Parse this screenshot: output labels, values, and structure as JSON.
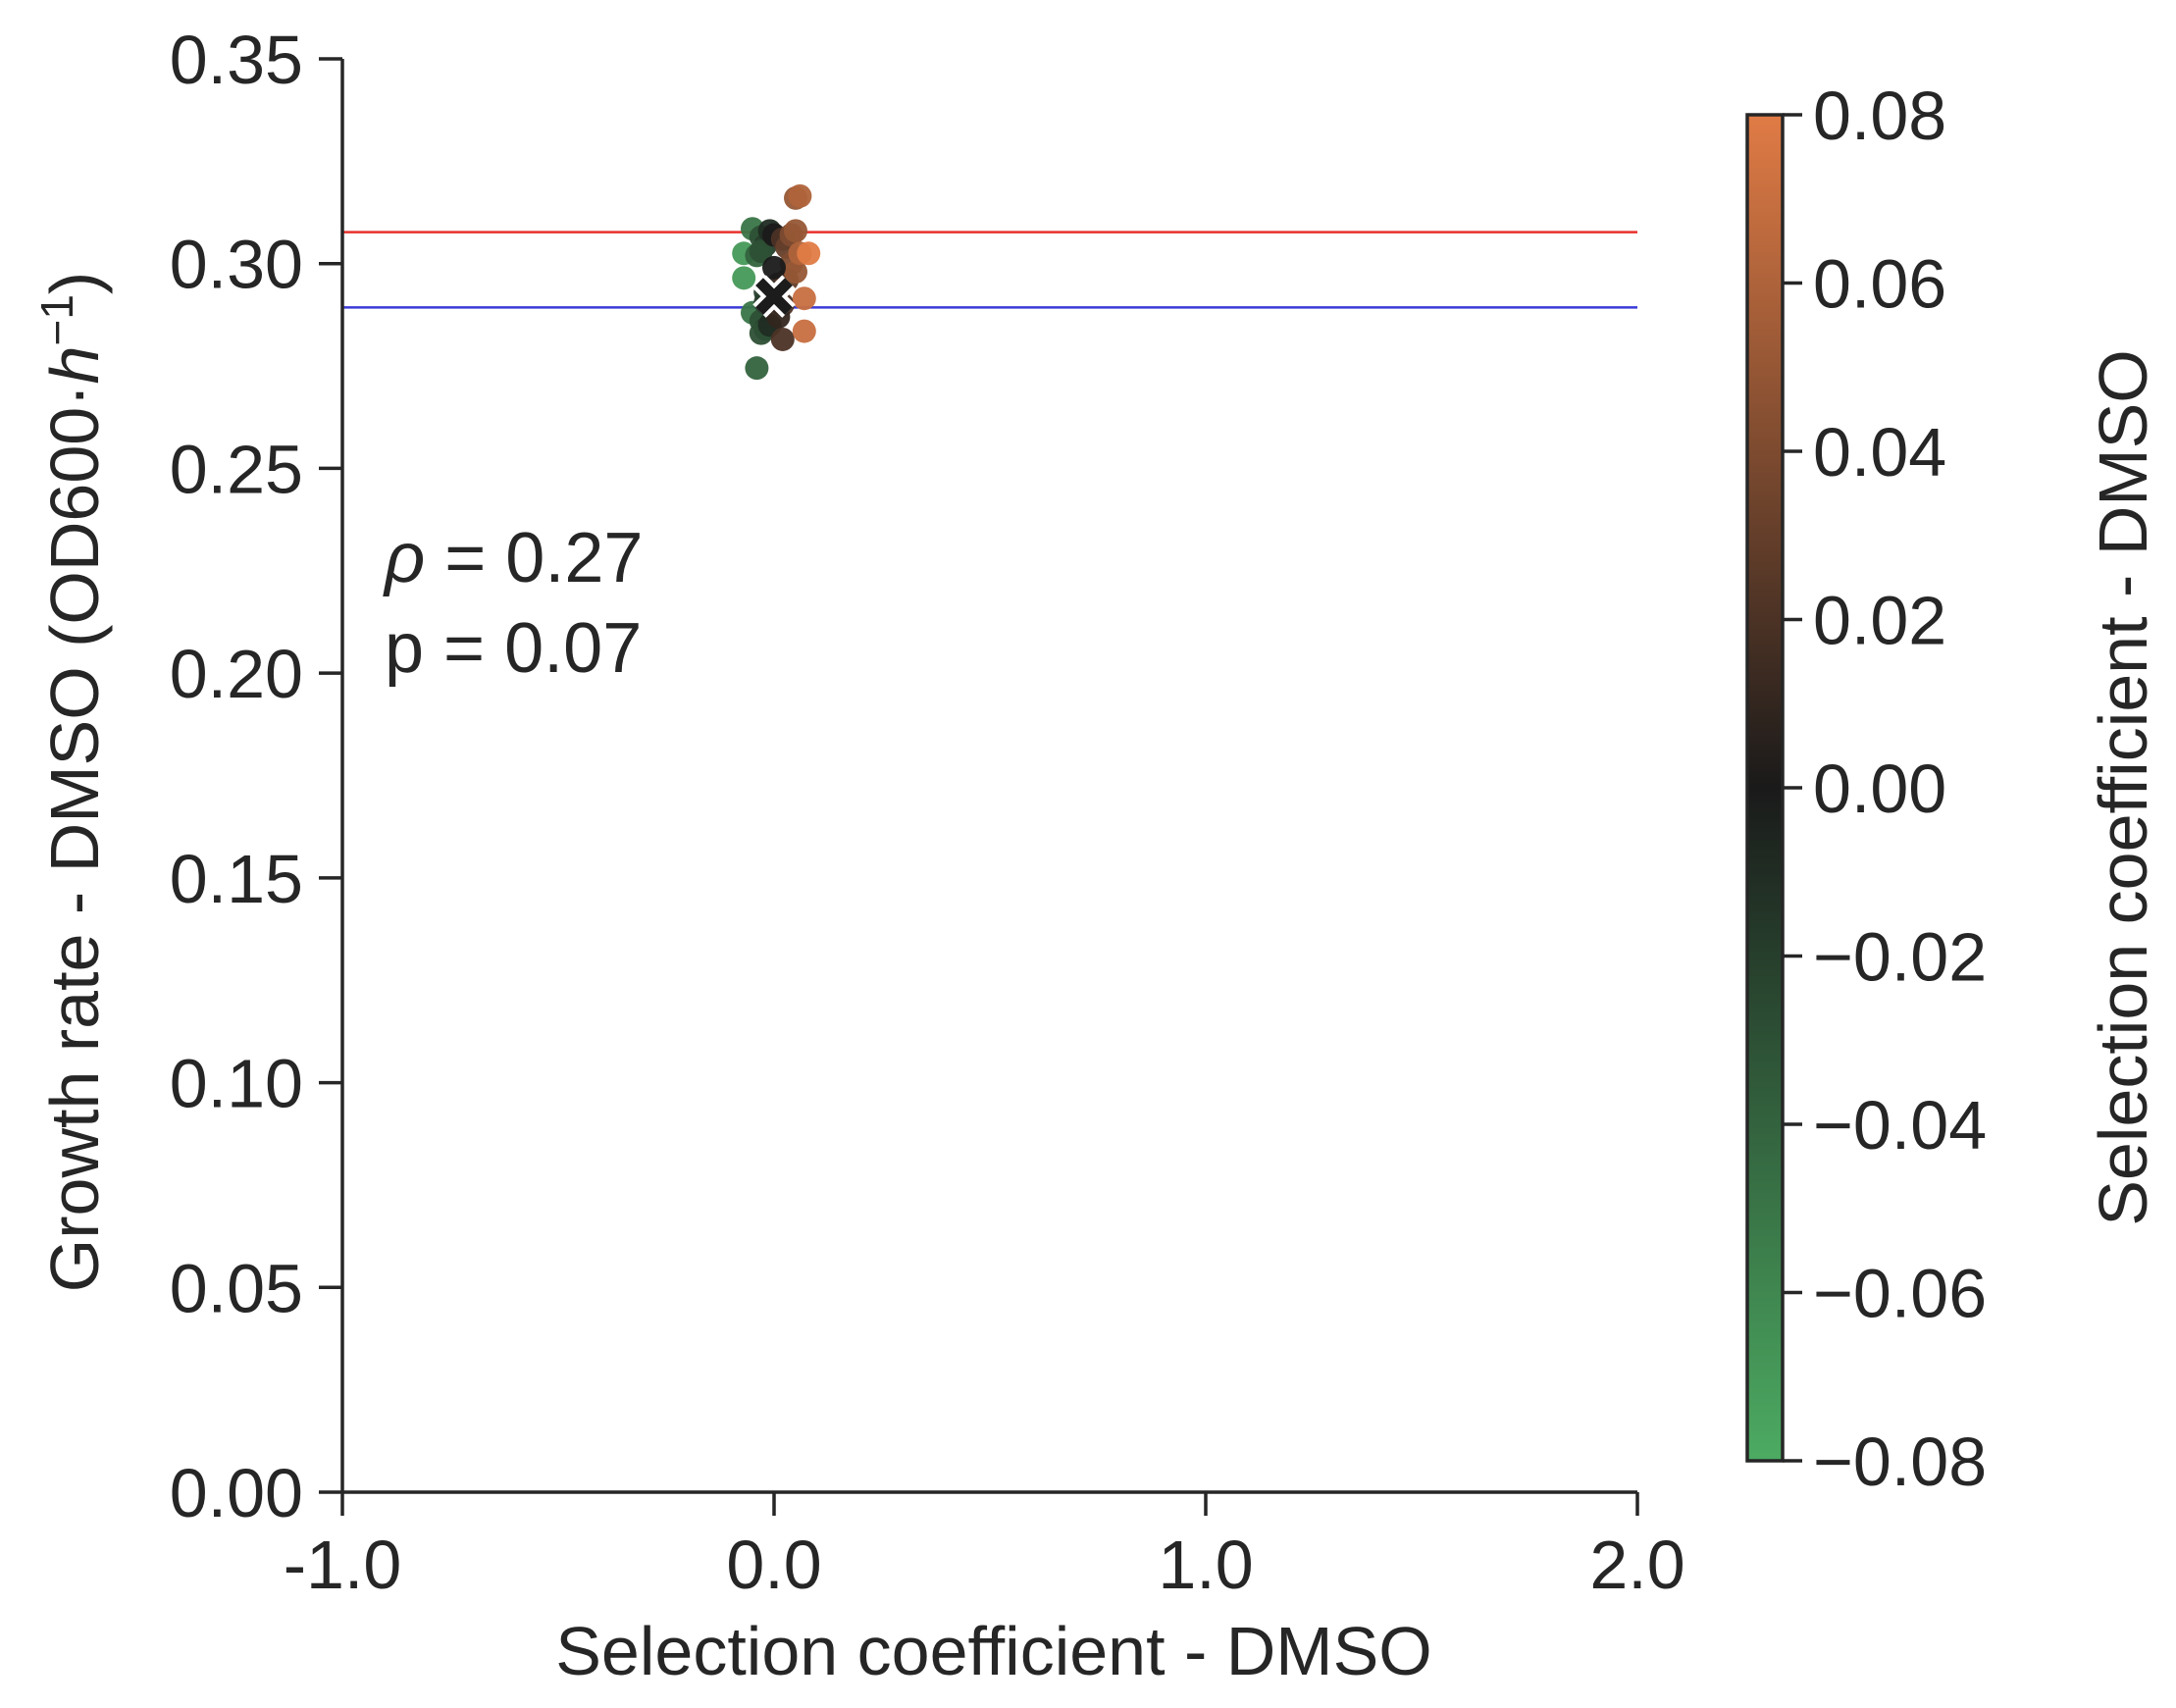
{
  "chart_data": {
    "type": "scatter",
    "xlabel": "Selection coefficient - DMSO",
    "ylabel_main": "Growth rate - DMSO (OD600·",
    "ylabel_unit_base": "h",
    "ylabel_unit_exp": "−1",
    "ylabel_close": ")",
    "xlim": [
      -1.0,
      2.0
    ],
    "ylim": [
      0.0,
      0.35
    ],
    "x_ticks": [
      -1.0,
      0.0,
      1.0,
      2.0
    ],
    "x_tick_labels": [
      "-1.0",
      "0.0",
      "1.0",
      "2.0"
    ],
    "y_ticks": [
      0.0,
      0.05,
      0.1,
      0.15,
      0.2,
      0.25,
      0.3,
      0.35
    ],
    "y_tick_labels": [
      "0.00",
      "0.05",
      "0.10",
      "0.15",
      "0.20",
      "0.25",
      "0.30",
      "0.35"
    ],
    "grid": false,
    "reference_lines": [
      {
        "y": 0.3077,
        "color": "#e8302c"
      },
      {
        "y": 0.2893,
        "color": "#3a3ad8"
      }
    ],
    "annotation": {
      "rho_symbol": "ρ",
      "rho_text": " = 0.27",
      "p_text": "p = 0.07"
    },
    "highlight_marker": {
      "x": 0.0,
      "y": 0.292,
      "shape": "x",
      "color": "#1c1c1c"
    },
    "colorbar": {
      "label": "Selection coefficient - DMSO",
      "range": [
        -0.08,
        0.08
      ],
      "ticks": [
        -0.08,
        -0.06,
        -0.04,
        -0.02,
        0.0,
        0.02,
        0.04,
        0.06,
        0.08
      ],
      "tick_labels": [
        "−0.08",
        "−0.06",
        "−0.04",
        "−0.02",
        "0.00",
        "0.02",
        "0.04",
        "0.06",
        "0.08"
      ],
      "colors": [
        "#4cab62",
        "#1a1a1a",
        "#e07b45"
      ]
    },
    "points": [
      {
        "x": -0.05,
        "y": 0.3085
      },
      {
        "x": -0.03,
        "y": 0.3065
      },
      {
        "x": -0.02,
        "y": 0.3045
      },
      {
        "x": -0.07,
        "y": 0.3025
      },
      {
        "x": -0.04,
        "y": 0.302
      },
      {
        "x": -0.03,
        "y": 0.303
      },
      {
        "x": -0.07,
        "y": 0.2965
      },
      {
        "x": -0.05,
        "y": 0.288
      },
      {
        "x": -0.03,
        "y": 0.286
      },
      {
        "x": -0.02,
        "y": 0.284
      },
      {
        "x": -0.03,
        "y": 0.283
      },
      {
        "x": -0.01,
        "y": 0.285
      },
      {
        "x": -0.04,
        "y": 0.2745
      },
      {
        "x": -0.02,
        "y": 0.2905
      },
      {
        "x": -0.01,
        "y": 0.308
      },
      {
        "x": 0.0,
        "y": 0.307
      },
      {
        "x": 0.02,
        "y": 0.306
      },
      {
        "x": 0.01,
        "y": 0.295
      },
      {
        "x": 0.02,
        "y": 0.29
      },
      {
        "x": 0.01,
        "y": 0.287
      },
      {
        "x": 0.02,
        "y": 0.2815
      },
      {
        "x": 0.03,
        "y": 0.304
      },
      {
        "x": 0.04,
        "y": 0.307
      },
      {
        "x": 0.04,
        "y": 0.3
      },
      {
        "x": 0.05,
        "y": 0.308
      },
      {
        "x": 0.03,
        "y": 0.296
      },
      {
        "x": 0.05,
        "y": 0.298
      },
      {
        "x": 0.05,
        "y": 0.316
      },
      {
        "x": 0.06,
        "y": 0.3165
      },
      {
        "x": 0.06,
        "y": 0.3025
      },
      {
        "x": 0.07,
        "y": 0.2915
      },
      {
        "x": 0.08,
        "y": 0.3025
      },
      {
        "x": 0.07,
        "y": 0.2835
      },
      {
        "x": -0.02,
        "y": 0.293
      },
      {
        "x": 0.0,
        "y": 0.299
      }
    ]
  }
}
